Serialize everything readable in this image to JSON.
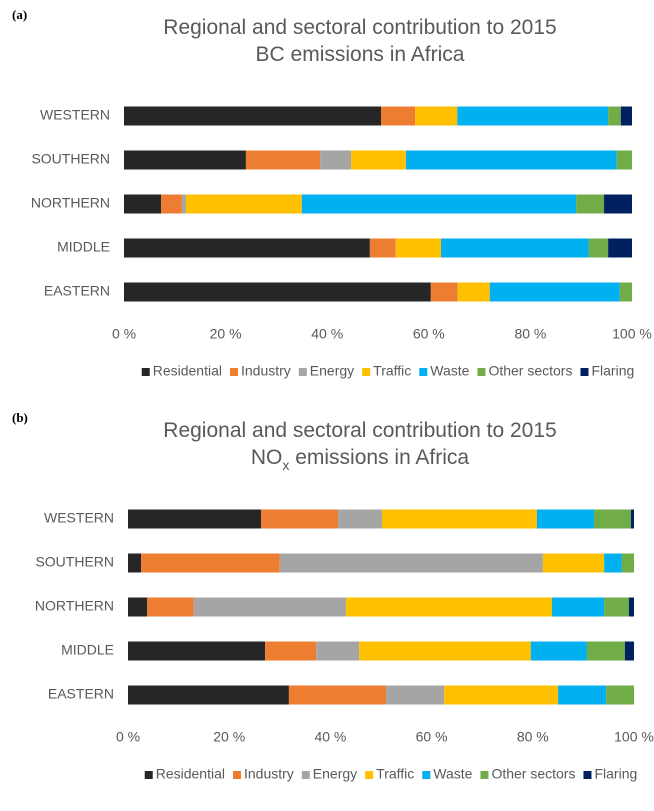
{
  "chart_data": [
    {
      "type": "bar",
      "orientation": "horizontal",
      "stacked": true,
      "panel": "(a)",
      "title": [
        [
          "Regional and sectoral contribution to 2015"
        ],
        [
          "BC emissions in Africa"
        ]
      ],
      "categories": [
        "WESTERN",
        "SOUTHERN",
        "NORTHERN",
        "MIDDLE",
        "EASTERN"
      ],
      "xlim": [
        0,
        100
      ],
      "xticks": [
        {
          "value": 0,
          "label": "0 %"
        },
        {
          "value": 20,
          "label": "20 %"
        },
        {
          "value": 40,
          "label": "40 %"
        },
        {
          "value": 60,
          "label": "60 %"
        },
        {
          "value": 80,
          "label": "80 %"
        },
        {
          "value": 100,
          "label": "100 %"
        }
      ],
      "legend": "bottom",
      "series": [
        {
          "name": "Residential",
          "color": "#262626",
          "values": [
            50.6,
            24.0,
            7.3,
            48.4,
            60.4
          ]
        },
        {
          "name": "Industry",
          "color": "#ed7d31",
          "values": [
            6.7,
            14.6,
            4.1,
            5.1,
            5.3
          ]
        },
        {
          "name": "Energy",
          "color": "#a5a5a5",
          "values": [
            0,
            6.1,
            0.8,
            0,
            0
          ]
        },
        {
          "name": "Traffic",
          "color": "#ffc000",
          "values": [
            8.3,
            10.8,
            22.8,
            8.9,
            6.3
          ]
        },
        {
          "name": "Waste",
          "color": "#00b0f0",
          "values": [
            29.7,
            41.5,
            54.0,
            29.1,
            25.6
          ]
        },
        {
          "name": "Other sectors",
          "color": "#70ad47",
          "values": [
            2.5,
            3.0,
            5.5,
            3.8,
            2.4
          ]
        },
        {
          "name": "Flaring",
          "color": "#002060",
          "values": [
            2.2,
            0,
            5.5,
            4.7,
            0
          ]
        }
      ]
    },
    {
      "type": "bar",
      "orientation": "horizontal",
      "stacked": true,
      "panel": "(b)",
      "title": [
        [
          "Regional and sectoral contribution to 2015"
        ],
        [
          "NO",
          {
            "sub": "x"
          },
          " emissions in Africa"
        ]
      ],
      "categories": [
        "WESTERN",
        "SOUTHERN",
        "NORTHERN",
        "MIDDLE",
        "EASTERN"
      ],
      "xlim": [
        0,
        100
      ],
      "xticks": [
        {
          "value": 0,
          "label": "0 %"
        },
        {
          "value": 20,
          "label": "20 %"
        },
        {
          "value": 40,
          "label": "40 %"
        },
        {
          "value": 60,
          "label": "60 %"
        },
        {
          "value": 80,
          "label": "80 %"
        },
        {
          "value": 100,
          "label": "100 %"
        }
      ],
      "legend": "bottom",
      "series": [
        {
          "name": "Residential",
          "color": "#262626",
          "values": [
            26.3,
            2.6,
            3.8,
            27.1,
            31.8
          ]
        },
        {
          "name": "Industry",
          "color": "#ed7d31",
          "values": [
            15.2,
            27.4,
            9.2,
            10.1,
            19.2
          ]
        },
        {
          "name": "Energy",
          "color": "#a5a5a5",
          "values": [
            8.7,
            52.0,
            30.1,
            8.5,
            11.5
          ]
        },
        {
          "name": "Traffic",
          "color": "#ffc000",
          "values": [
            30.6,
            12.1,
            40.7,
            33.9,
            22.5
          ]
        },
        {
          "name": "Waste",
          "color": "#00b0f0",
          "values": [
            11.3,
            3.5,
            10.3,
            11.1,
            9.5
          ]
        },
        {
          "name": "Other sectors",
          "color": "#70ad47",
          "values": [
            7.3,
            2.4,
            4.9,
            7.5,
            5.5
          ]
        },
        {
          "name": "Flaring",
          "color": "#002060",
          "values": [
            0.6,
            0,
            1.0,
            1.8,
            0
          ]
        }
      ]
    }
  ]
}
